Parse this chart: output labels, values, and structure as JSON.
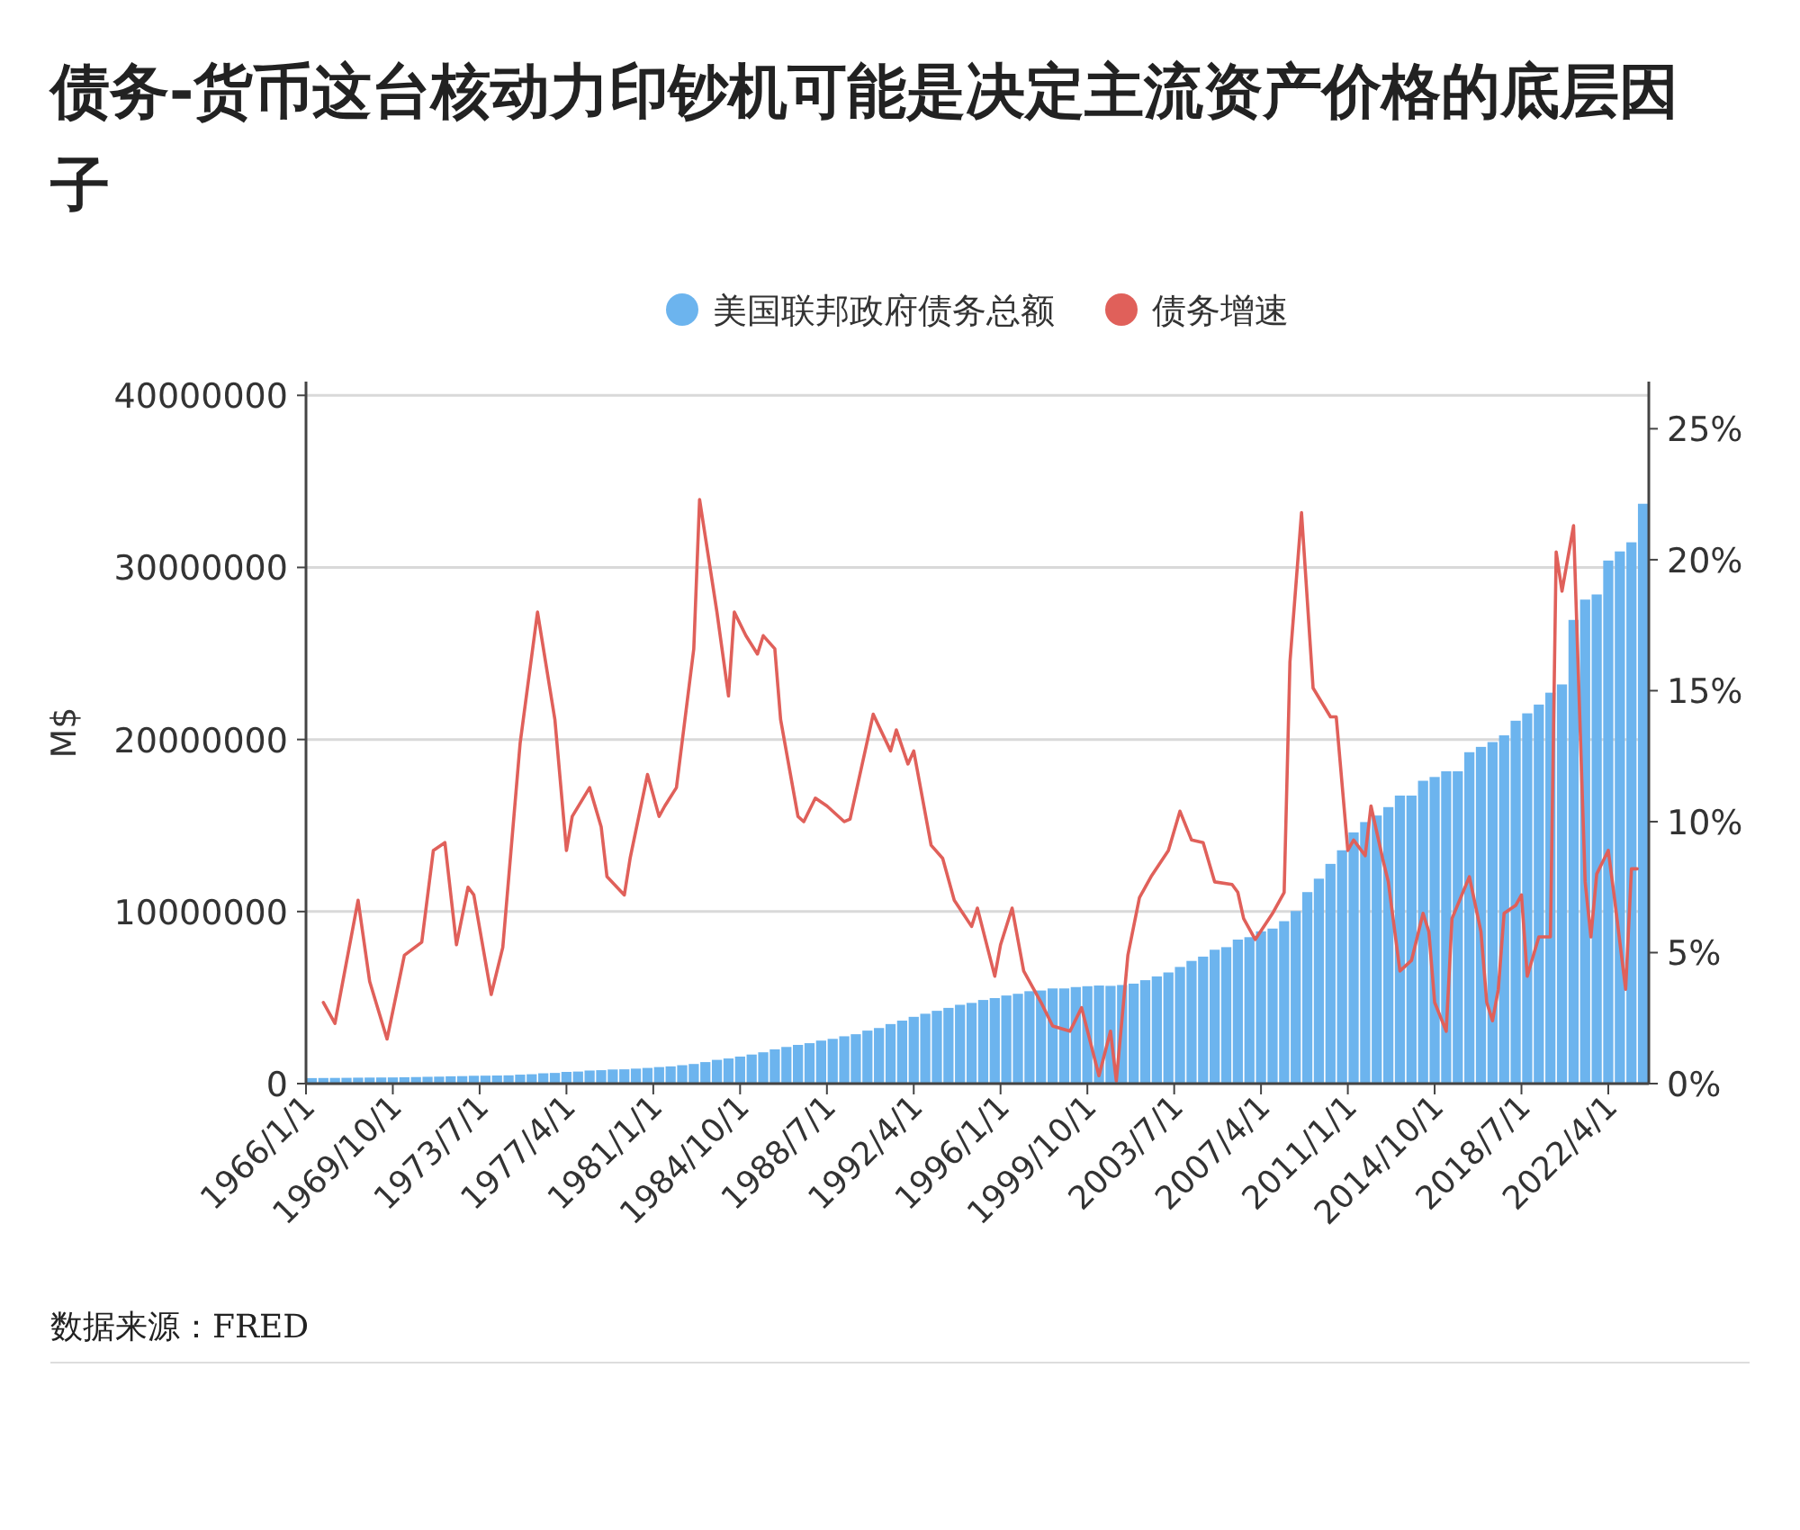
{
  "chart_data": {
    "type": "bar",
    "title": "债务-货币这台核动力印钞机可能是决定主流资产价格的底层因子",
    "ylabel": "M$",
    "legend": "top",
    "grid": "y",
    "annotations": [
      "数据来源：FRED"
    ],
    "xlim": [
      "1966-01",
      "2024-01"
    ],
    "xticks": [
      {
        "value": "1966-01",
        "label": "1966/1/1"
      },
      {
        "value": "1969-10",
        "label": "1969/10/1"
      },
      {
        "value": "1973-07",
        "label": "1973/7/1"
      },
      {
        "value": "1977-04",
        "label": "1977/4/1"
      },
      {
        "value": "1981-01",
        "label": "1981/1/1"
      },
      {
        "value": "1984-10",
        "label": "1984/10/1"
      },
      {
        "value": "1988-07",
        "label": "1988/7/1"
      },
      {
        "value": "1992-04",
        "label": "1992/4/1"
      },
      {
        "value": "1996-01",
        "label": "1996/1/1"
      },
      {
        "value": "1999-10",
        "label": "1999/10/1"
      },
      {
        "value": "2003-07",
        "label": "2003/7/1"
      },
      {
        "value": "2007-04",
        "label": "2007/4/1"
      },
      {
        "value": "2011-01",
        "label": "2011/1/1"
      },
      {
        "value": "2014-10",
        "label": "2014/10/1"
      },
      {
        "value": "2018-07",
        "label": "2018/7/1"
      },
      {
        "value": "2022-04",
        "label": "2022/4/1"
      }
    ],
    "ylim": [
      0,
      40800000
    ],
    "yticks": [
      0,
      10000000,
      20000000,
      30000000,
      40000000
    ],
    "y2lim": [
      0,
      26.8
    ],
    "y2ticks": [
      {
        "value": 0,
        "label": "0%"
      },
      {
        "value": 5,
        "label": "5%"
      },
      {
        "value": 10,
        "label": "10%"
      },
      {
        "value": 15,
        "label": "15%"
      },
      {
        "value": 20,
        "label": "20%"
      },
      {
        "value": 25,
        "label": "25%"
      }
    ],
    "series": [
      {
        "name": "美国联邦政府债务总额",
        "color": "#6cb4ee",
        "x": [
          "1966-01",
          "1966-07",
          "1967-01",
          "1967-07",
          "1968-01",
          "1968-07",
          "1969-01",
          "1969-07",
          "1970-01",
          "1970-07",
          "1971-01",
          "1971-07",
          "1972-01",
          "1972-07",
          "1973-01",
          "1973-07",
          "1974-01",
          "1974-07",
          "1975-01",
          "1975-07",
          "1976-01",
          "1976-07",
          "1977-01",
          "1977-07",
          "1978-01",
          "1978-07",
          "1979-01",
          "1979-07",
          "1980-01",
          "1980-07",
          "1981-01",
          "1981-07",
          "1982-01",
          "1982-07",
          "1983-01",
          "1983-07",
          "1984-01",
          "1984-07",
          "1985-01",
          "1985-07",
          "1986-01",
          "1986-07",
          "1987-01",
          "1987-07",
          "1988-01",
          "1988-07",
          "1989-01",
          "1989-07",
          "1990-01",
          "1990-07",
          "1991-01",
          "1991-07",
          "1992-01",
          "1992-07",
          "1993-01",
          "1993-07",
          "1994-01",
          "1994-07",
          "1995-01",
          "1995-07",
          "1996-01",
          "1996-07",
          "1997-01",
          "1997-07",
          "1998-01",
          "1998-07",
          "1999-01",
          "1999-07",
          "2000-01",
          "2000-07",
          "2001-01",
          "2001-07",
          "2002-01",
          "2002-07",
          "2003-01",
          "2003-07",
          "2004-01",
          "2004-07",
          "2005-01",
          "2005-07",
          "2006-01",
          "2006-07",
          "2007-01",
          "2007-07",
          "2008-01",
          "2008-07",
          "2009-01",
          "2009-07",
          "2010-01",
          "2010-07",
          "2011-01",
          "2011-07",
          "2012-01",
          "2012-07",
          "2013-01",
          "2013-07",
          "2014-01",
          "2014-07",
          "2015-01",
          "2015-07",
          "2016-01",
          "2016-07",
          "2017-01",
          "2017-07",
          "2018-01",
          "2018-07",
          "2019-01",
          "2019-07",
          "2020-01",
          "2020-07",
          "2021-01",
          "2021-07",
          "2022-01",
          "2022-07",
          "2023-01",
          "2023-07"
        ],
        "values": [
          320000,
          325000,
          330000,
          335000,
          345000,
          350000,
          355000,
          358000,
          370000,
          380000,
          395000,
          405000,
          425000,
          435000,
          455000,
          462000,
          470000,
          480000,
          520000,
          545000,
          600000,
          620000,
          680000,
          700000,
          760000,
          780000,
          820000,
          830000,
          870000,
          910000,
          960000,
          1000000,
          1070000,
          1140000,
          1250000,
          1380000,
          1460000,
          1570000,
          1690000,
          1820000,
          1990000,
          2130000,
          2250000,
          2350000,
          2500000,
          2600000,
          2750000,
          2870000,
          3080000,
          3230000,
          3460000,
          3660000,
          3880000,
          4060000,
          4230000,
          4400000,
          4580000,
          4690000,
          4860000,
          4970000,
          5120000,
          5220000,
          5370000,
          5410000,
          5530000,
          5530000,
          5610000,
          5660000,
          5700000,
          5680000,
          5730000,
          5810000,
          6010000,
          6230000,
          6460000,
          6780000,
          7130000,
          7380000,
          7780000,
          7930000,
          8370000,
          8510000,
          8850000,
          9010000,
          9440000,
          10030000,
          11130000,
          11910000,
          12770000,
          13560000,
          14600000,
          15200000,
          15580000,
          16070000,
          16740000,
          16740000,
          17600000,
          17820000,
          18150000,
          18150000,
          19260000,
          19570000,
          19850000,
          20240000,
          21090000,
          21520000,
          22030000,
          22720000,
          23200000,
          26950000,
          28130000,
          28430000,
          30400000,
          30930000,
          31460000,
          33700000
        ]
      },
      {
        "name": "债务增速",
        "color": "#e0605a",
        "type": "line",
        "axis": "y2",
        "x": [
          "1966-10",
          "1967-04",
          "1968-04",
          "1968-10",
          "1969-07",
          "1970-04",
          "1971-01",
          "1971-07",
          "1972-01",
          "1972-07",
          "1973-01",
          "1973-04",
          "1974-01",
          "1974-07",
          "1975-04",
          "1976-01",
          "1976-10",
          "1977-04",
          "1977-07",
          "1978-04",
          "1978-10",
          "1979-01",
          "1979-10",
          "1980-01",
          "1980-10",
          "1981-04",
          "1981-07",
          "1982-01",
          "1982-10",
          "1983-01",
          "1983-10",
          "1984-04",
          "1984-07",
          "1985-01",
          "1985-07",
          "1985-10",
          "1986-04",
          "1986-07",
          "1987-04",
          "1987-07",
          "1988-01",
          "1988-07",
          "1989-04",
          "1989-07",
          "1990-07",
          "1991-04",
          "1991-07",
          "1992-01",
          "1992-04",
          "1993-01",
          "1993-07",
          "1994-01",
          "1994-10",
          "1995-01",
          "1995-10",
          "1996-01",
          "1996-07",
          "1997-01",
          "1997-10",
          "1998-04",
          "1999-01",
          "1999-07",
          "2000-04",
          "2000-10",
          "2001-01",
          "2001-07",
          "2002-01",
          "2002-07",
          "2003-04",
          "2003-10",
          "2004-04",
          "2004-10",
          "2005-04",
          "2006-01",
          "2006-04",
          "2006-07",
          "2007-01",
          "2007-10",
          "2008-04",
          "2008-07",
          "2009-01",
          "2009-07",
          "2010-04",
          "2010-07",
          "2011-01",
          "2011-04",
          "2011-10",
          "2012-01",
          "2012-07",
          "2012-10",
          "2013-04",
          "2013-10",
          "2014-04",
          "2014-07",
          "2014-10",
          "2015-04",
          "2015-07",
          "2016-04",
          "2016-10",
          "2017-01",
          "2017-04",
          "2017-07",
          "2017-10",
          "2018-04",
          "2018-07",
          "2018-10",
          "2019-04",
          "2019-10",
          "2020-01",
          "2020-04",
          "2020-10",
          "2021-04",
          "2021-07",
          "2021-10",
          "2022-04",
          "2022-07",
          "2023-01",
          "2023-04",
          "2023-07"
        ],
        "values": [
          3.1,
          2.3,
          7.0,
          3.9,
          1.7,
          4.9,
          5.4,
          8.9,
          9.2,
          5.3,
          7.5,
          7.2,
          3.4,
          5.2,
          13.0,
          18.0,
          13.9,
          8.9,
          10.2,
          11.3,
          9.8,
          7.9,
          7.2,
          8.6,
          11.8,
          10.2,
          10.6,
          11.3,
          16.6,
          22.3,
          18.0,
          14.8,
          18.0,
          17.1,
          16.4,
          17.1,
          16.6,
          13.9,
          10.2,
          10.0,
          10.9,
          10.6,
          10.0,
          10.1,
          14.1,
          12.7,
          13.5,
          12.2,
          12.7,
          9.1,
          8.6,
          7.0,
          6.0,
          6.7,
          4.1,
          5.3,
          6.7,
          4.3,
          3.1,
          2.2,
          2.0,
          2.9,
          0.3,
          2.0,
          0.1,
          4.9,
          7.1,
          7.9,
          8.9,
          10.4,
          9.3,
          9.2,
          7.7,
          7.6,
          7.3,
          6.3,
          5.5,
          6.5,
          7.3,
          16.1,
          21.8,
          15.1,
          14.0,
          14.0,
          8.9,
          9.3,
          8.7,
          10.6,
          8.6,
          7.7,
          4.3,
          4.7,
          6.5,
          5.8,
          3.1,
          2.0,
          6.3,
          7.9,
          5.8,
          3.1,
          2.4,
          3.6,
          6.5,
          6.8,
          7.2,
          4.1,
          5.6,
          5.6,
          20.3,
          18.8,
          21.3,
          7.7,
          5.6,
          8.0,
          8.9,
          7.2,
          3.6,
          8.2,
          8.2
        ]
      }
    ]
  }
}
